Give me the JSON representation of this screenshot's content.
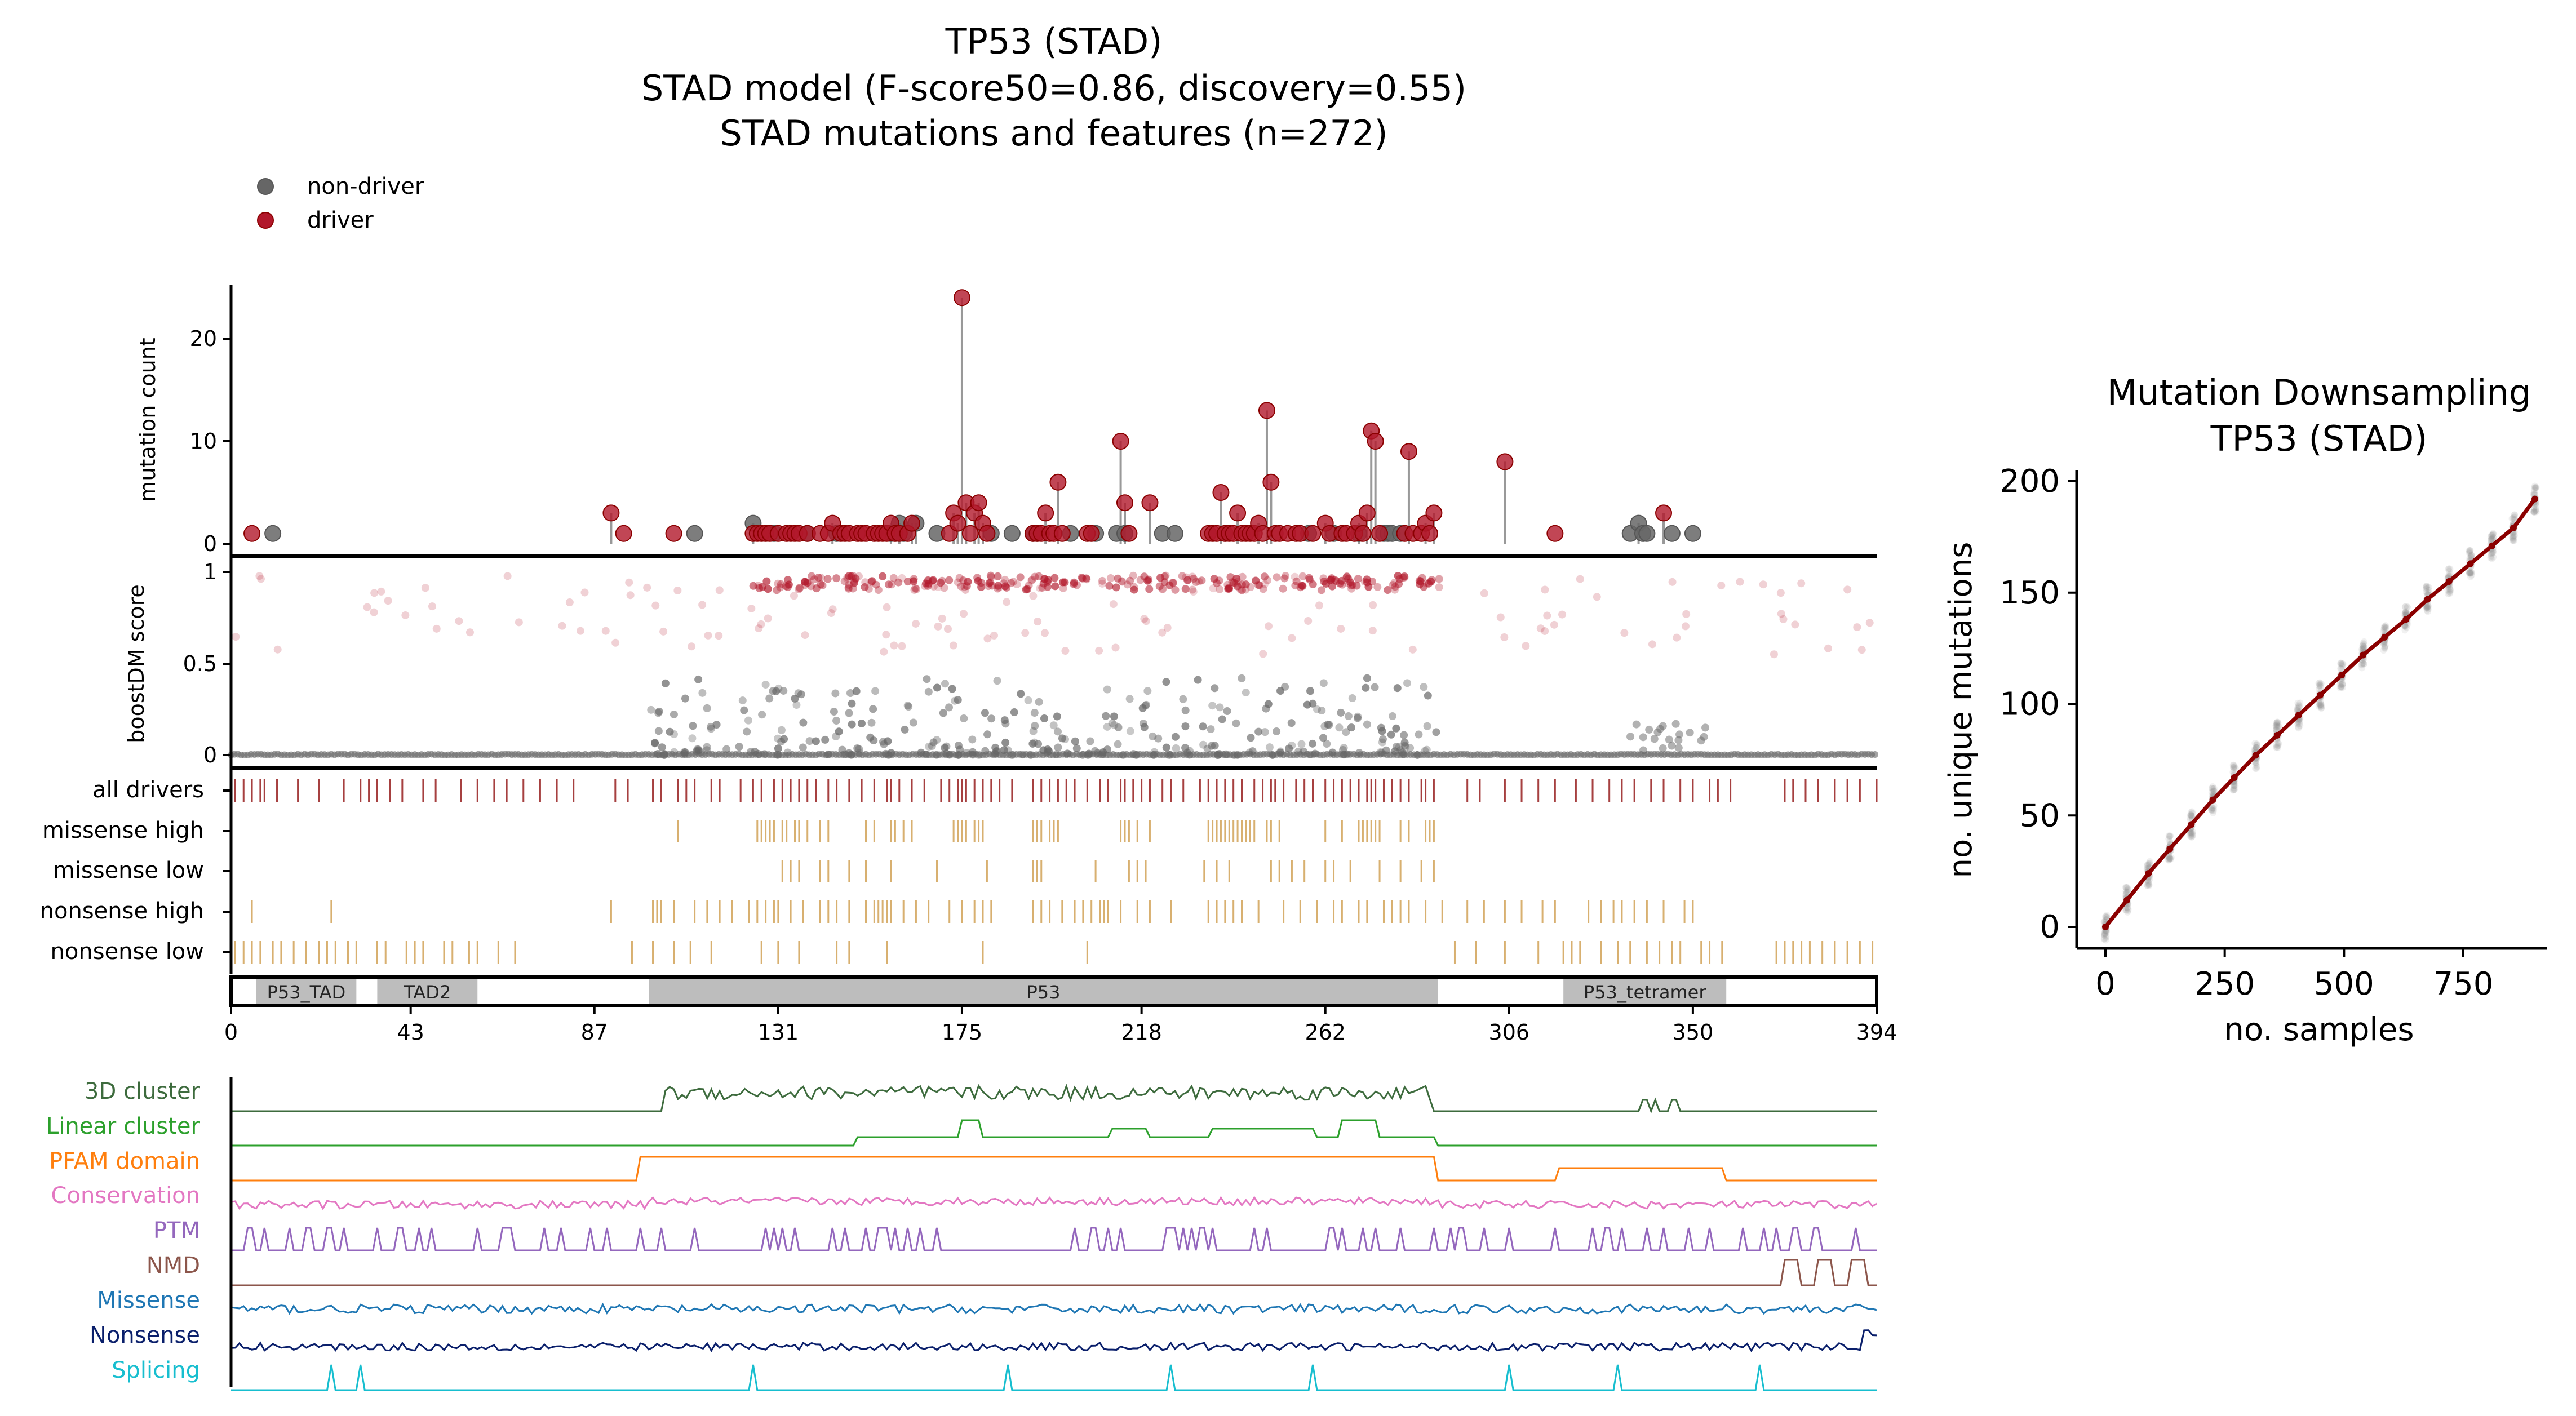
{
  "figure": {
    "title": [
      "TP53 (STAD)",
      "STAD model (F-score50=0.86, discovery=0.55)",
      "STAD mutations and features (n=272)"
    ],
    "legend": [
      {
        "label": "non-driver",
        "color": "#666666"
      },
      {
        "label": "driver",
        "color": "#b2182b"
      }
    ],
    "colors": {
      "driver": "#b2182b",
      "non_driver": "#666666",
      "track_tick": "#d8b070",
      "driver_tick": "#a64040",
      "domain_fill": "#bdbdbd"
    }
  },
  "chart_data": [
    {
      "type": "scatter",
      "name": "needle",
      "ylabel": "mutation count",
      "xlim": [
        0,
        394
      ],
      "ylim": [
        0,
        25
      ],
      "yticks": [
        0,
        10,
        20
      ],
      "driver_points": [
        [
          5,
          1
        ],
        [
          91,
          3
        ],
        [
          94,
          1
        ],
        [
          106,
          1
        ],
        [
          125,
          1
        ],
        [
          126,
          1
        ],
        [
          127,
          1
        ],
        [
          128,
          1
        ],
        [
          129,
          1
        ],
        [
          131,
          1
        ],
        [
          133,
          1
        ],
        [
          134,
          1
        ],
        [
          135,
          1
        ],
        [
          136,
          1
        ],
        [
          138,
          1
        ],
        [
          141,
          1
        ],
        [
          143,
          1
        ],
        [
          144,
          2
        ],
        [
          146,
          1
        ],
        [
          147,
          1
        ],
        [
          148,
          1
        ],
        [
          150,
          1
        ],
        [
          151,
          1
        ],
        [
          152,
          1
        ],
        [
          154,
          1
        ],
        [
          155,
          1
        ],
        [
          156,
          1
        ],
        [
          157,
          1
        ],
        [
          158,
          2
        ],
        [
          159,
          1
        ],
        [
          160,
          1
        ],
        [
          162,
          1
        ],
        [
          163,
          2
        ],
        [
          172,
          1
        ],
        [
          173,
          3
        ],
        [
          174,
          2
        ],
        [
          175,
          24
        ],
        [
          176,
          4
        ],
        [
          177,
          1
        ],
        [
          178,
          3
        ],
        [
          179,
          4
        ],
        [
          180,
          2
        ],
        [
          181,
          1
        ],
        [
          192,
          1
        ],
        [
          193,
          1
        ],
        [
          194,
          1
        ],
        [
          195,
          3
        ],
        [
          196,
          1
        ],
        [
          197,
          1
        ],
        [
          198,
          6
        ],
        [
          199,
          1
        ],
        [
          205,
          1
        ],
        [
          206,
          1
        ],
        [
          213,
          10
        ],
        [
          214,
          4
        ],
        [
          215,
          1
        ],
        [
          220,
          4
        ],
        [
          234,
          1
        ],
        [
          235,
          1
        ],
        [
          236,
          1
        ],
        [
          237,
          5
        ],
        [
          238,
          1
        ],
        [
          239,
          1
        ],
        [
          240,
          1
        ],
        [
          241,
          3
        ],
        [
          242,
          1
        ],
        [
          243,
          1
        ],
        [
          244,
          1
        ],
        [
          245,
          1
        ],
        [
          246,
          2
        ],
        [
          247,
          1
        ],
        [
          248,
          13
        ],
        [
          249,
          6
        ],
        [
          250,
          1
        ],
        [
          251,
          1
        ],
        [
          253,
          1
        ],
        [
          255,
          1
        ],
        [
          256,
          1
        ],
        [
          259,
          1
        ],
        [
          262,
          2
        ],
        [
          263,
          1
        ],
        [
          266,
          1
        ],
        [
          267,
          1
        ],
        [
          269,
          1
        ],
        [
          270,
          2
        ],
        [
          271,
          1
        ],
        [
          272,
          3
        ],
        [
          273,
          11
        ],
        [
          274,
          10
        ],
        [
          275,
          1
        ],
        [
          281,
          1
        ],
        [
          282,
          9
        ],
        [
          283,
          1
        ],
        [
          285,
          1
        ],
        [
          286,
          2
        ],
        [
          287,
          1
        ],
        [
          288,
          3
        ],
        [
          305,
          8
        ],
        [
          317,
          1
        ],
        [
          343,
          3
        ]
      ],
      "non_driver_points": [
        [
          10,
          1
        ],
        [
          111,
          1
        ],
        [
          125,
          2
        ],
        [
          130,
          1
        ],
        [
          138,
          1
        ],
        [
          145,
          1
        ],
        [
          158,
          1
        ],
        [
          159,
          1
        ],
        [
          160,
          2
        ],
        [
          161,
          1
        ],
        [
          164,
          2
        ],
        [
          169,
          1
        ],
        [
          182,
          1
        ],
        [
          187,
          1
        ],
        [
          192,
          1
        ],
        [
          193,
          1
        ],
        [
          201,
          1
        ],
        [
          207,
          1
        ],
        [
          212,
          1
        ],
        [
          214,
          1
        ],
        [
          223,
          1
        ],
        [
          226,
          1
        ],
        [
          238,
          1
        ],
        [
          258,
          1
        ],
        [
          264,
          1
        ],
        [
          270,
          1
        ],
        [
          276,
          1
        ],
        [
          277,
          1
        ],
        [
          278,
          1
        ],
        [
          280,
          1
        ],
        [
          335,
          1
        ],
        [
          337,
          2
        ],
        [
          338,
          1
        ],
        [
          339,
          1
        ],
        [
          345,
          1
        ],
        [
          350,
          1
        ]
      ]
    },
    {
      "type": "scatter",
      "name": "boostDM",
      "ylabel": "boostDM score",
      "xlim": [
        0,
        394
      ],
      "ylim": [
        0,
        1
      ],
      "yticks": [
        "0",
        "0.5",
        "1"
      ]
    },
    {
      "type": "table",
      "name": "mutation-tracks",
      "rows": [
        {
          "label": "all drivers",
          "color": "#a64040",
          "positions": [
            1,
            3,
            5,
            7,
            8,
            11,
            16,
            21,
            27,
            31,
            33,
            35,
            38,
            41,
            46,
            49,
            55,
            59,
            63,
            66,
            70,
            74,
            78,
            82,
            92,
            95,
            101,
            103,
            107,
            109,
            111,
            115,
            117,
            122,
            125,
            127,
            130,
            132,
            134,
            136,
            138,
            140,
            143,
            145,
            148,
            151,
            154,
            157,
            158,
            160,
            163,
            166,
            170,
            172,
            174,
            175,
            176,
            178,
            180,
            182,
            184,
            187,
            192,
            194,
            196,
            198,
            200,
            202,
            205,
            208,
            210,
            213,
            214,
            216,
            218,
            220,
            223,
            225,
            228,
            232,
            234,
            236,
            238,
            240,
            242,
            245,
            247,
            249,
            250,
            252,
            255,
            257,
            259,
            262,
            264,
            266,
            268,
            270,
            272,
            273,
            274,
            276,
            278,
            280,
            282,
            285,
            286,
            288,
            296,
            299,
            305,
            309,
            313,
            317,
            322,
            326,
            330,
            333,
            336,
            340,
            343,
            347,
            350,
            354,
            356,
            359,
            372,
            374,
            377,
            380,
            384,
            387,
            390,
            394
          ]
        },
        {
          "label": "missense high",
          "color": "#d8b070",
          "positions": [
            107,
            126,
            127,
            128,
            129,
            130,
            132,
            133,
            135,
            136,
            138,
            141,
            143,
            152,
            154,
            158,
            159,
            161,
            163,
            173,
            174,
            175,
            176,
            178,
            179,
            180,
            192,
            193,
            194,
            196,
            197,
            198,
            213,
            214,
            215,
            217,
            220,
            234,
            235,
            236,
            237,
            238,
            239,
            240,
            241,
            242,
            243,
            244,
            245,
            248,
            249,
            251,
            262,
            266,
            270,
            271,
            272,
            273,
            274,
            275,
            280,
            282,
            286,
            287,
            288
          ]
        },
        {
          "label": "missense low",
          "color": "#d8b070",
          "positions": [
            132,
            134,
            136,
            141,
            143,
            148,
            152,
            158,
            169,
            181,
            192,
            193,
            194,
            207,
            215,
            217,
            219,
            233,
            236,
            239,
            249,
            251,
            254,
            257,
            262,
            264,
            268,
            275,
            280,
            285,
            288
          ]
        },
        {
          "label": "nonsense high",
          "color": "#d8b070",
          "positions": [
            5,
            24,
            91,
            101,
            102,
            103,
            106,
            111,
            114,
            117,
            120,
            124,
            126,
            128,
            130,
            131,
            134,
            137,
            141,
            143,
            145,
            148,
            152,
            154,
            155,
            156,
            157,
            158,
            161,
            164,
            167,
            172,
            175,
            178,
            180,
            182,
            192,
            194,
            196,
            199,
            202,
            204,
            206,
            208,
            209,
            210,
            213,
            217,
            220,
            225,
            234,
            236,
            238,
            240,
            242,
            246,
            252,
            256,
            260,
            264,
            266,
            270,
            272,
            276,
            278,
            280,
            282,
            286,
            290,
            296,
            300,
            305,
            309,
            314,
            317,
            325,
            328,
            331,
            333,
            336,
            339,
            343,
            348,
            350
          ]
        },
        {
          "label": "nonsense low",
          "color": "#d8b070",
          "positions": [
            1,
            3,
            5,
            7,
            10,
            12,
            15,
            18,
            21,
            23,
            25,
            28,
            30,
            35,
            37,
            42,
            44,
            46,
            51,
            53,
            57,
            59,
            64,
            68,
            96,
            101,
            106,
            110,
            115,
            127,
            131,
            136,
            145,
            148,
            157,
            180,
            205,
            293,
            298,
            305,
            313,
            319,
            321,
            323,
            328,
            332,
            335,
            339,
            342,
            345,
            347,
            352,
            354,
            357,
            370,
            372,
            374,
            376,
            378,
            381,
            384,
            387,
            390,
            393
          ]
        }
      ]
    },
    {
      "type": "table",
      "name": "domains",
      "xticks": [
        0,
        43,
        87,
        131,
        175,
        218,
        262,
        306,
        350,
        394
      ],
      "domains": [
        {
          "label": "P53_TAD",
          "start": 6,
          "end": 30
        },
        {
          "label": "TAD2",
          "start": 35,
          "end": 59
        },
        {
          "label": "P53",
          "start": 100,
          "end": 289
        },
        {
          "label": "P53_tetramer",
          "start": 319,
          "end": 358
        }
      ]
    },
    {
      "type": "line",
      "name": "features",
      "series": [
        {
          "name": "3D cluster",
          "color": "#3d6b3d"
        },
        {
          "name": "Linear cluster",
          "color": "#2ca02c"
        },
        {
          "name": "PFAM domain",
          "color": "#ff7f0e"
        },
        {
          "name": "Conservation",
          "color": "#e377c2"
        },
        {
          "name": "PTM",
          "color": "#9467bd"
        },
        {
          "name": "NMD",
          "color": "#8c564b"
        },
        {
          "name": "Missense",
          "color": "#1f77b4"
        },
        {
          "name": "Nonsense",
          "color": "#0a1f6b"
        },
        {
          "name": "Splicing",
          "color": "#17becf"
        }
      ]
    },
    {
      "type": "line",
      "name": "downsampling",
      "title": [
        "Mutation Downsampling",
        "TP53 (STAD)"
      ],
      "xlabel": "no. samples",
      "ylabel": "no. unique mutations",
      "xticks": [
        0,
        250,
        500,
        750
      ],
      "yticks": [
        0,
        50,
        100,
        150,
        200
      ],
      "xlim": [
        -40,
        940
      ],
      "ylim": [
        -10,
        205
      ],
      "x": [
        0,
        45,
        90,
        135,
        180,
        225,
        270,
        315,
        360,
        405,
        450,
        495,
        540,
        585,
        630,
        675,
        720,
        765,
        810,
        855,
        900
      ],
      "y": [
        0,
        12,
        24,
        35,
        46,
        57,
        67,
        77,
        86,
        95,
        104,
        113,
        122,
        130,
        138,
        147,
        155,
        163,
        171,
        179,
        192
      ],
      "color": "#8b0000"
    }
  ]
}
